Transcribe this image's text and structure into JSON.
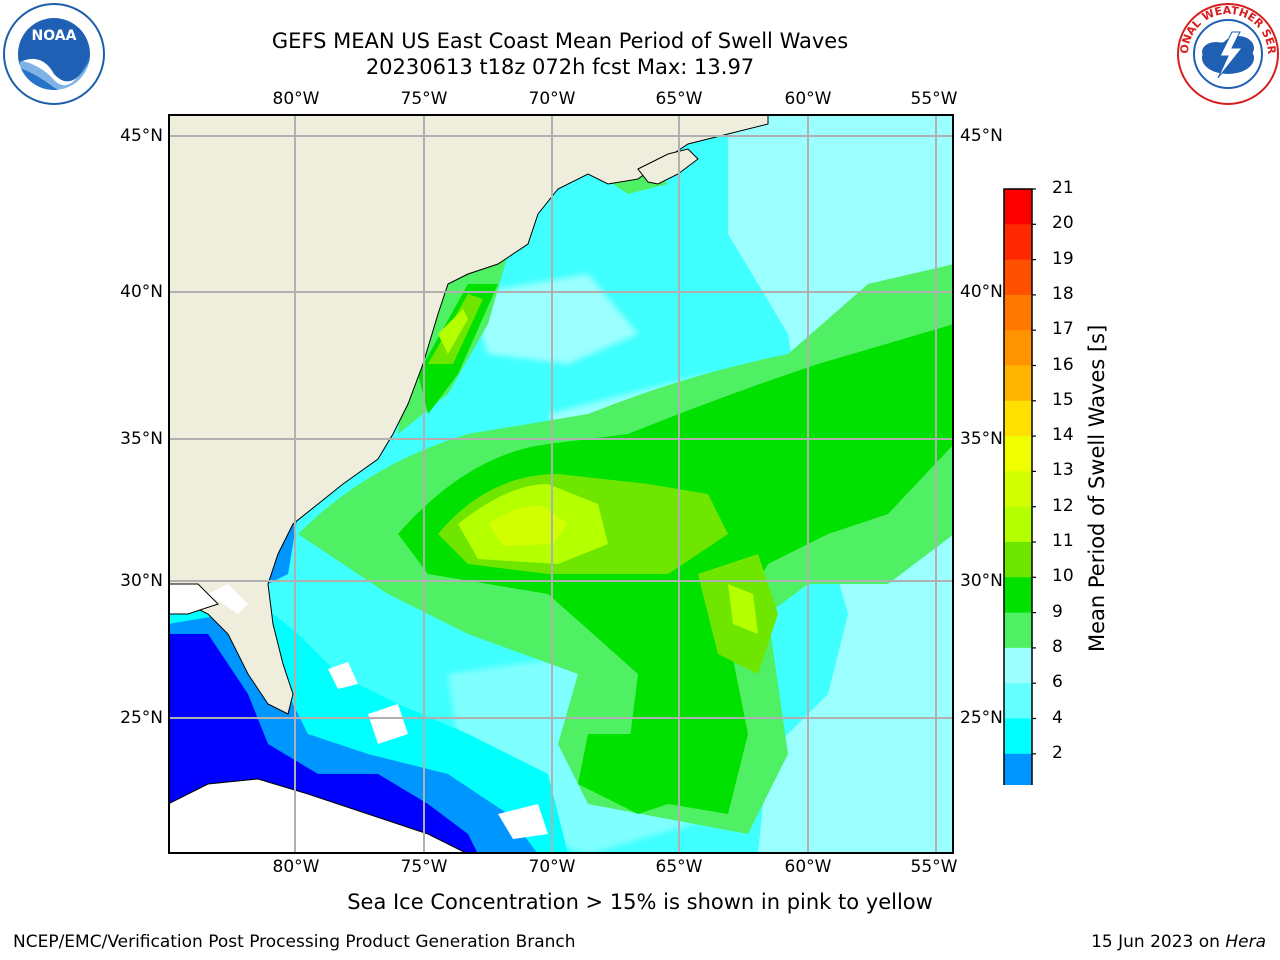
{
  "header": {
    "title_line1": "GEFS MEAN US East Coast Mean Period of Swell Waves",
    "title_line2": "20230613 t18z 072h fcst   Max: 13.97"
  },
  "logos": {
    "left": {
      "label": "NOAA",
      "ring_text": "NATIONAL OCEANIC AND ATMOSPHERIC ADMINISTRATION · U.S. DEPARTMENT OF COMMERCE"
    },
    "right": {
      "ring_text": "NATIONAL WEATHER SERVICE"
    }
  },
  "map": {
    "lon_ticks": [
      "80°W",
      "75°W",
      "70°W",
      "65°W",
      "60°W",
      "55°W"
    ],
    "lat_ticks": [
      "45°N",
      "40°N",
      "35°N",
      "30°N",
      "25°N"
    ],
    "colors": {
      "land": "#efeedc",
      "ocean_base": "#40ffff",
      "grid": "#b0b0b0"
    }
  },
  "colorbar": {
    "label": "Mean Period of Swell Waves [s]",
    "ticks": [
      "21",
      "20",
      "19",
      "18",
      "17",
      "16",
      "15",
      "14",
      "13",
      "12",
      "11",
      "10",
      "9",
      "8",
      "6",
      "4",
      "2"
    ],
    "colors_top_to_bottom": [
      "#ff0000",
      "#ff2800",
      "#ff5000",
      "#ff7800",
      "#ff9400",
      "#ffb400",
      "#ffe000",
      "#f0ff00",
      "#d2ff00",
      "#b4ff00",
      "#6ee600",
      "#00e100",
      "#50f064",
      "#9bffff",
      "#64ffff",
      "#00ffff",
      "#0096ff"
    ],
    "underflow_color": "#0000ff"
  },
  "caption": "Sea Ice Concentration > 15% is shown in pink to yellow",
  "footer": {
    "left": "NCEP/EMC/Verification Post Processing Product Generation Branch",
    "right_date": "15 Jun 2023 on ",
    "right_host": "Hera"
  }
}
